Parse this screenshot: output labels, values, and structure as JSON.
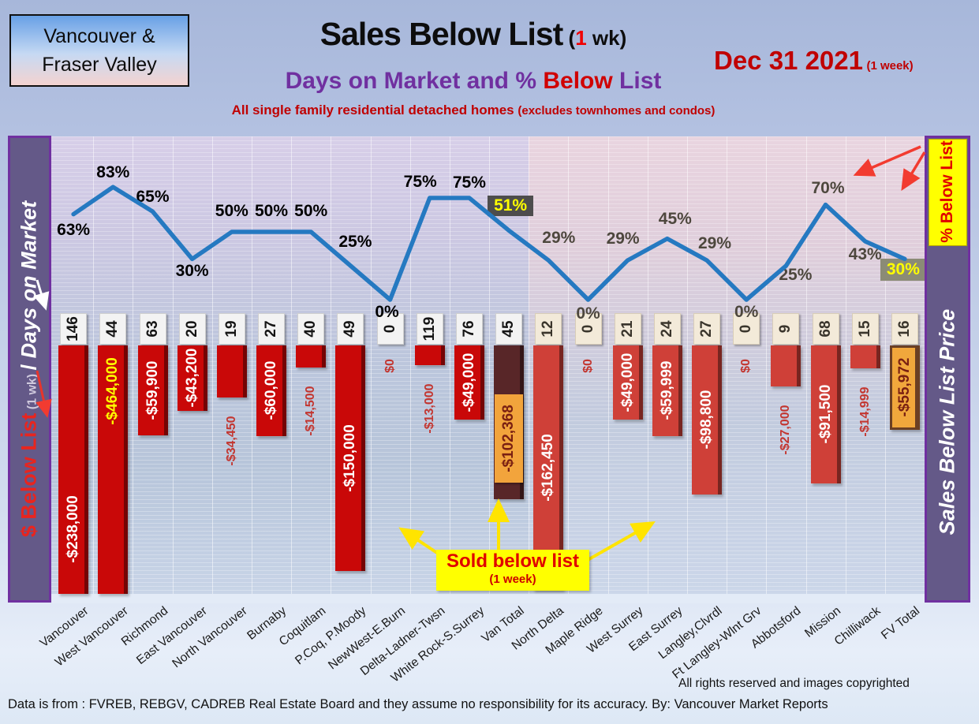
{
  "header": {
    "region_box_line1": "Vancouver &",
    "region_box_line2": "Fraser Valley",
    "title_main": "Sales Below List",
    "title_paren_open": " (",
    "title_week_digit": "1",
    "title_paren_close": " wk)",
    "date_main": "Dec 31  2021",
    "date_note": "(1 week)",
    "subtitle_p1": "Days on Market and % ",
    "subtitle_red": "Below",
    "subtitle_p2": " List",
    "tagline_main": "All single family residential detached homes ",
    "tagline_note": "(excludes townhomes and condos)"
  },
  "left_axis": {
    "dollar_label": "$ Below List",
    "week_note": " (1 wk) ",
    "separator": " / ",
    "days_label": "Days on Market"
  },
  "right_axis": {
    "percent_box_label": "% Below List",
    "price_label": "Sales Below List Price"
  },
  "annotation": {
    "sold_below_main": "Sold below list",
    "sold_below_note": "(1 week)"
  },
  "footer": {
    "rights": "All rights reserved and  images copyrighted",
    "source": "Data is from : FVREB, REBGV, CADREB Real Estate Board and they assume no responsibility for its accuracy. By: Vancouver Market Reports"
  },
  "colors": {
    "line_blue": "#2579c1",
    "bar_vancouver": "#c90808",
    "bar_fraser_valley": "#cf4038",
    "bar_van_total": "#582628",
    "bar_fv_total": "#f1a73c",
    "accent_yellow": "#ffff00",
    "sidebar_purple": "#645988",
    "border_purple": "#7030a0",
    "title_purple": "#7030a0",
    "accent_red": "#c00000",
    "pct_box_dark": "#4d4d4d",
    "pct_box_olive": "#8b8b76"
  },
  "chart_data": {
    "type": "combo",
    "title": "Sales Below List (1 wk) — Days on Market and % Below List",
    "subtitle": "All single family residential detached homes (excludes townhomes and condos)",
    "date": "Dec 31 2021 (1 week)",
    "categories": [
      "Vancouver",
      "West Vancouver",
      "Richmond",
      "East Vancouver",
      "North Vancouver",
      "Burnaby",
      "Coquitlam",
      "P.Coq, P.Moody",
      "NewWest-E.Burn",
      "Delta-Ladner-Twsn",
      "White Rock-S.Surrey",
      "Van Total",
      "North Delta",
      "Maple Ridge",
      "West Surrey",
      "East Surrey",
      "Langley,Clvrdl",
      "Ft Langley-Wlnt Grv",
      "Abbotsford",
      "Mission",
      "Chilliwack",
      "FV Total"
    ],
    "sections": [
      {
        "name": "Vancouver",
        "from": 0,
        "to": 11
      },
      {
        "name": "Fraser Valley",
        "from": 12,
        "to": 21
      }
    ],
    "fv_start": 12,
    "series": [
      {
        "name": "% Below List",
        "type": "line",
        "axis": "percent",
        "values": [
          63,
          83,
          65,
          30,
          50,
          50,
          50,
          25,
          0,
          75,
          75,
          51,
          29,
          0,
          29,
          45,
          29,
          0,
          25,
          70,
          43,
          30
        ],
        "label_variant": [
          "black",
          "black",
          "black",
          "black",
          "black",
          "black",
          "black",
          "black",
          "black",
          "black",
          "black",
          "box-dark",
          "gray",
          "gray",
          "gray",
          "gray",
          "gray",
          "gray",
          "gray",
          "gray",
          "gray",
          "box-olive"
        ],
        "label_dx": [
          0,
          0,
          0,
          0,
          0,
          0,
          0,
          6,
          -4,
          -12,
          0,
          2,
          13,
          0,
          -6,
          10,
          10,
          0,
          12,
          3,
          0,
          -2
        ],
        "label_dy": [
          20,
          -18,
          -18,
          16,
          -26,
          -26,
          -26,
          -30,
          16,
          -20,
          -19,
          -31,
          -28,
          18,
          -27,
          -25,
          -21,
          16,
          12,
          -21,
          17,
          14
        ]
      },
      {
        "name": "Days on Market",
        "type": "label",
        "values": [
          146,
          44,
          63,
          20,
          19,
          27,
          40,
          49,
          0,
          119,
          76,
          45,
          12,
          0,
          21,
          24,
          27,
          0,
          9,
          68,
          15,
          16
        ]
      },
      {
        "name": "$ Below List (1 wk)",
        "type": "bar",
        "axis": "dollars",
        "values": [
          -238000,
          -464000,
          -59900,
          -43200,
          -34450,
          -60000,
          -14500,
          -150000,
          0,
          -13000,
          -49000,
          -102368,
          -162450,
          0,
          -49000,
          -59999,
          -98800,
          0,
          -27000,
          -91500,
          -14999,
          -55972
        ],
        "labels": [
          "-$238,000",
          "-$464,000",
          "-$59,900",
          "-$43,200",
          "-$34,450",
          "-$60,000",
          "-$14,500",
          "-$150,000",
          "$0",
          "-$13,000",
          "-$49,000",
          "-$102,368",
          "-$162,450",
          "$0",
          "-$49,000",
          "-$59,999",
          "-$98,800",
          "$0",
          "-$27,000",
          "-$91,500",
          "-$14,999",
          "-$55,972"
        ],
        "bar_variant": [
          "van",
          "van",
          "van",
          "van",
          "van",
          "van",
          "van",
          "van",
          "van",
          "van",
          "van",
          "van-total",
          "fv",
          "fv",
          "fv",
          "fv",
          "fv",
          "fv",
          "fv",
          "fv",
          "fv",
          "fv-total"
        ],
        "label_variant": [
          "in-white",
          "in-yellow",
          "in-white",
          "in-white",
          "out-red",
          "in-white",
          "out-red",
          "in-white",
          "zero",
          "out-red",
          "in-white",
          "box",
          "in-white",
          "zero",
          "in-white",
          "in-white",
          "in-white",
          "zero",
          "out-red",
          "in-white",
          "out-red",
          "in-gold"
        ],
        "label_shift": [
          75,
          -100,
          0,
          0,
          0,
          0,
          0,
          0,
          0,
          0,
          0,
          0,
          0,
          0,
          0,
          0,
          0,
          0,
          0,
          0,
          0,
          0
        ]
      }
    ],
    "dollar_axis": {
      "min": -165000,
      "max": 0,
      "clip": true
    },
    "percent_axis": {
      "min": 0,
      "max": 100
    },
    "legend_position": "none",
    "grid": true
  }
}
